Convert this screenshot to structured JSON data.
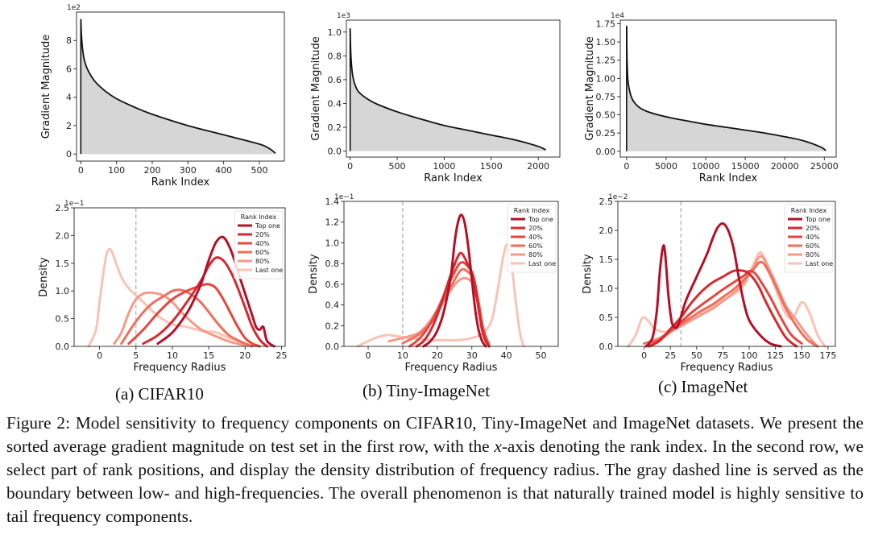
{
  "figure": {
    "subcaptions": [
      "(a) CIFAR10",
      "(b) Tiny-ImageNet",
      "(c) ImageNet"
    ],
    "caption": {
      "label": "Figure 2:",
      "text_before_math": "Model sensitivity to frequency components on CIFAR10, Tiny-ImageNet and ImageNet datasets. We present the sorted average gradient magnitude on test set in the first row, with the ",
      "math": "x",
      "text_after_math": "-axis denoting the rank index. In the second row, we select part of rank positions, and display the density distribution of frequency radius. The gray dashed line is served as the boundary between low- and high-frequencies. The overall phenomenon is that naturally trained model is highly sensitive to tail frequency components."
    }
  },
  "colors": {
    "fill_gray": "#d6d6d6",
    "curve_black": "#111111",
    "boundary_gray": "#9a9a9a",
    "series": [
      "#b5102a",
      "#d42a2f",
      "#e5473f",
      "#ef6f5c",
      "#f49a86",
      "#f7c4b5"
    ]
  },
  "chart_data": [
    {
      "id": "mag_cifar",
      "type": "area",
      "xlabel": "Rank Index",
      "ylabel": "Gradient Magnitude",
      "y_scale_label": "1e2",
      "xlim": [
        -12,
        570
      ],
      "ylim": [
        -0.5,
        10
      ],
      "xticks": [
        0,
        100,
        200,
        300,
        400,
        500
      ],
      "yticks": [
        0,
        2,
        4,
        6,
        8
      ],
      "x": [
        0,
        2,
        5,
        10,
        20,
        40,
        70,
        100,
        150,
        200,
        300,
        400,
        500,
        530,
        545
      ],
      "y": [
        9.5,
        8.3,
        7.4,
        6.6,
        5.9,
        5.1,
        4.4,
        3.9,
        3.3,
        2.8,
        2.0,
        1.35,
        0.7,
        0.35,
        0.05
      ]
    },
    {
      "id": "mag_tiny",
      "type": "area",
      "xlabel": "Rank Index",
      "ylabel": "Gradient Magnitude",
      "y_scale_label": "1e3",
      "xlim": [
        -40,
        2230
      ],
      "ylim": [
        -0.05,
        1.1
      ],
      "xticks": [
        0,
        500,
        1000,
        1500,
        2000
      ],
      "yticks": [
        0.0,
        0.2,
        0.4,
        0.6,
        0.8,
        1.0
      ],
      "x": [
        0,
        5,
        15,
        30,
        60,
        100,
        200,
        300,
        500,
        750,
        1000,
        1250,
        1500,
        1750,
        2000,
        2080
      ],
      "y": [
        1.03,
        0.85,
        0.72,
        0.62,
        0.54,
        0.49,
        0.43,
        0.39,
        0.33,
        0.27,
        0.215,
        0.175,
        0.135,
        0.095,
        0.04,
        0.01
      ]
    },
    {
      "id": "mag_imagenet",
      "type": "area",
      "xlabel": "Rank Index",
      "ylabel": "Gradient Magnitude",
      "y_scale_label": "1e4",
      "xlim": [
        -800,
        26500
      ],
      "ylim": [
        -0.08,
        1.8
      ],
      "xticks": [
        0,
        5000,
        10000,
        15000,
        20000,
        25000
      ],
      "yticks": [
        0.0,
        0.25,
        0.5,
        0.75,
        1.0,
        1.25,
        1.5,
        1.75
      ],
      "x": [
        0,
        50,
        150,
        400,
        800,
        1500,
        2500,
        4000,
        6000,
        8000,
        10000,
        12500,
        15000,
        17500,
        20000,
        22500,
        24500,
        25200
      ],
      "y": [
        1.72,
        1.3,
        1.0,
        0.82,
        0.7,
        0.61,
        0.55,
        0.5,
        0.45,
        0.41,
        0.37,
        0.33,
        0.29,
        0.25,
        0.2,
        0.14,
        0.06,
        0.01
      ]
    },
    {
      "id": "dens_cifar",
      "type": "line",
      "xlabel": "Frequency Radius",
      "ylabel": "Density",
      "y_scale_label": "1e−1",
      "xlim": [
        -3.5,
        25.5
      ],
      "ylim": [
        0,
        2.5
      ],
      "xticks": [
        0,
        5,
        10,
        15,
        20,
        25
      ],
      "yticks": [
        0.0,
        0.5,
        1.0,
        1.5,
        2.0,
        2.5
      ],
      "boundary_x": 5,
      "legend_title": "Rank Index",
      "series": [
        {
          "name": "Top one",
          "x": [
            8,
            10,
            12,
            13,
            14,
            15,
            16,
            17,
            18,
            19,
            20,
            21,
            21.5,
            22,
            22.5,
            23,
            24
          ],
          "y": [
            0.05,
            0.25,
            0.6,
            0.85,
            1.15,
            1.55,
            1.88,
            1.97,
            1.75,
            1.35,
            0.95,
            0.55,
            0.35,
            0.3,
            0.35,
            0.1,
            0
          ]
        },
        {
          "name": "20%",
          "x": [
            6,
            8,
            10,
            12,
            14,
            15,
            16,
            17,
            18,
            19,
            20,
            21,
            22,
            23
          ],
          "y": [
            0.05,
            0.2,
            0.45,
            0.8,
            1.2,
            1.45,
            1.6,
            1.55,
            1.35,
            1.05,
            0.7,
            0.35,
            0.12,
            0
          ]
        },
        {
          "name": "40%",
          "x": [
            4,
            6,
            8,
            10,
            12,
            14,
            15,
            16,
            17,
            18,
            19,
            20,
            21,
            22
          ],
          "y": [
            0.05,
            0.3,
            0.6,
            0.85,
            1.0,
            1.1,
            1.12,
            1.05,
            0.85,
            0.6,
            0.35,
            0.15,
            0.05,
            0
          ]
        },
        {
          "name": "60%",
          "x": [
            3,
            5,
            7,
            9,
            10,
            11,
            12,
            13,
            14,
            15,
            16,
            17,
            18,
            20,
            21
          ],
          "y": [
            0.05,
            0.45,
            0.75,
            0.92,
            1.0,
            1.02,
            0.98,
            0.9,
            0.78,
            0.62,
            0.45,
            0.3,
            0.18,
            0.05,
            0
          ]
        },
        {
          "name": "80%",
          "x": [
            2,
            3,
            4,
            5,
            6,
            7,
            8,
            9,
            10,
            11,
            12,
            13,
            14,
            16,
            18,
            20
          ],
          "y": [
            0.05,
            0.25,
            0.6,
            0.85,
            0.95,
            0.97,
            0.95,
            0.9,
            0.8,
            0.65,
            0.52,
            0.4,
            0.3,
            0.18,
            0.08,
            0.02
          ]
        },
        {
          "name": "Last one",
          "x": [
            -1.5,
            -0.5,
            0,
            0.5,
            1,
            1.5,
            2,
            3,
            4,
            5,
            6,
            8,
            10,
            12,
            14,
            16,
            18,
            20,
            22
          ],
          "y": [
            0,
            0.3,
            0.8,
            1.3,
            1.68,
            1.75,
            1.6,
            1.25,
            1.05,
            0.92,
            0.8,
            0.55,
            0.4,
            0.35,
            0.28,
            0.25,
            0.14,
            0.05,
            0
          ]
        }
      ]
    },
    {
      "id": "dens_tiny",
      "type": "line",
      "xlabel": "Frequency Radius",
      "ylabel": "Density",
      "y_scale_label": "1e−1",
      "xlim": [
        -7,
        55
      ],
      "ylim": [
        0,
        1.4
      ],
      "xticks": [
        0,
        10,
        20,
        30,
        40,
        50
      ],
      "yticks": [
        0.0,
        0.2,
        0.4,
        0.6,
        0.8,
        1.0,
        1.2,
        1.4
      ],
      "boundary_x": 10,
      "legend_title": "Rank Index",
      "series": [
        {
          "name": "Top one",
          "x": [
            16,
            18,
            20,
            22,
            24,
            25,
            26,
            27,
            28,
            29,
            30,
            31,
            32,
            33,
            34
          ],
          "y": [
            0,
            0.05,
            0.15,
            0.35,
            0.7,
            1.0,
            1.2,
            1.27,
            1.18,
            0.95,
            0.65,
            0.35,
            0.15,
            0.05,
            0
          ]
        },
        {
          "name": "20%",
          "x": [
            14,
            16,
            18,
            20,
            22,
            24,
            26,
            27,
            28,
            29,
            30,
            31,
            32,
            33,
            34,
            35
          ],
          "y": [
            0,
            0.05,
            0.15,
            0.3,
            0.5,
            0.7,
            0.87,
            0.9,
            0.85,
            0.78,
            0.7,
            0.55,
            0.35,
            0.15,
            0.05,
            0
          ]
        },
        {
          "name": "40%",
          "x": [
            12,
            14,
            16,
            18,
            20,
            22,
            24,
            26,
            27,
            28,
            30,
            31,
            32,
            33,
            34,
            35
          ],
          "y": [
            0,
            0.05,
            0.12,
            0.22,
            0.35,
            0.5,
            0.65,
            0.78,
            0.81,
            0.8,
            0.72,
            0.6,
            0.4,
            0.2,
            0.08,
            0
          ]
        },
        {
          "name": "60%",
          "x": [
            10,
            14,
            16,
            18,
            20,
            22,
            24,
            26,
            27,
            28,
            30,
            31,
            32,
            33,
            34,
            35
          ],
          "y": [
            0.03,
            0.1,
            0.15,
            0.22,
            0.32,
            0.45,
            0.58,
            0.7,
            0.74,
            0.74,
            0.68,
            0.58,
            0.42,
            0.22,
            0.1,
            0.02
          ]
        },
        {
          "name": "80%",
          "x": [
            6,
            10,
            14,
            16,
            18,
            20,
            22,
            24,
            26,
            28,
            30,
            31,
            32,
            33,
            34,
            35
          ],
          "y": [
            0.05,
            0.08,
            0.12,
            0.17,
            0.25,
            0.35,
            0.45,
            0.55,
            0.63,
            0.66,
            0.62,
            0.52,
            0.38,
            0.2,
            0.08,
            0.02
          ]
        },
        {
          "name": "Last one",
          "x": [
            -3,
            0,
            2,
            4,
            6,
            8,
            10,
            12,
            15,
            18,
            22,
            26,
            30,
            33,
            35,
            36,
            37,
            38,
            39,
            40,
            41,
            42,
            43,
            44,
            45
          ],
          "y": [
            0,
            0.05,
            0.08,
            0.1,
            0.11,
            0.1,
            0.09,
            0.08,
            0.07,
            0.06,
            0.06,
            0.06,
            0.08,
            0.12,
            0.2,
            0.28,
            0.45,
            0.65,
            0.85,
            0.98,
            0.92,
            0.65,
            0.35,
            0.12,
            0
          ]
        }
      ]
    },
    {
      "id": "dens_imagenet",
      "type": "line",
      "xlabel": "Frequency Radius",
      "ylabel": "Density",
      "y_scale_label": "1e−2",
      "xlim": [
        -25,
        182
      ],
      "ylim": [
        0,
        2.5
      ],
      "xticks": [
        0,
        25,
        50,
        75,
        100,
        125,
        150,
        175
      ],
      "yticks": [
        0.0,
        0.5,
        1.0,
        1.5,
        2.0,
        2.5
      ],
      "boundary_x": 35,
      "legend_title": "Rank Index",
      "series": [
        {
          "name": "Top one",
          "x": [
            2,
            8,
            12,
            15,
            18,
            20,
            23,
            26,
            28,
            30,
            32,
            34,
            40,
            50,
            60,
            65,
            70,
            75,
            80,
            85,
            90,
            95,
            100,
            110,
            120,
            130
          ],
          "y": [
            0,
            0.15,
            0.6,
            1.3,
            1.72,
            1.6,
            0.9,
            0.45,
            0.35,
            0.32,
            0.35,
            0.45,
            0.8,
            1.2,
            1.6,
            1.85,
            2.05,
            2.12,
            2.0,
            1.7,
            1.2,
            0.75,
            0.45,
            0.2,
            0.05,
            0
          ]
        },
        {
          "name": "20%",
          "x": [
            5,
            15,
            25,
            35,
            45,
            55,
            65,
            75,
            85,
            95,
            100,
            105,
            110,
            115,
            125,
            135,
            145
          ],
          "y": [
            0,
            0.1,
            0.3,
            0.5,
            0.75,
            0.95,
            1.1,
            1.2,
            1.3,
            1.3,
            1.25,
            1.15,
            1.0,
            0.8,
            0.45,
            0.15,
            0
          ]
        },
        {
          "name": "40%",
          "x": [
            5,
            15,
            25,
            35,
            45,
            55,
            65,
            75,
            85,
            95,
            100,
            105,
            110,
            120,
            130,
            140,
            150
          ],
          "y": [
            0,
            0.12,
            0.28,
            0.42,
            0.58,
            0.72,
            0.85,
            0.98,
            1.1,
            1.22,
            1.3,
            1.27,
            1.15,
            0.85,
            0.5,
            0.2,
            0.05
          ]
        },
        {
          "name": "60%",
          "x": [
            0,
            15,
            25,
            35,
            45,
            55,
            65,
            75,
            85,
            95,
            105,
            110,
            115,
            125,
            135,
            145,
            155,
            165
          ],
          "y": [
            0.05,
            0.12,
            0.25,
            0.38,
            0.5,
            0.62,
            0.72,
            0.85,
            0.98,
            1.15,
            1.35,
            1.45,
            1.4,
            1.05,
            0.65,
            0.35,
            0.12,
            0
          ]
        },
        {
          "name": "80%",
          "x": [
            0,
            15,
            25,
            35,
            45,
            55,
            65,
            75,
            85,
            95,
            105,
            110,
            115,
            125,
            135,
            145,
            155,
            165
          ],
          "y": [
            0.05,
            0.15,
            0.25,
            0.35,
            0.45,
            0.55,
            0.65,
            0.78,
            0.92,
            1.1,
            1.4,
            1.55,
            1.48,
            1.1,
            0.7,
            0.45,
            0.2,
            0
          ]
        },
        {
          "name": "Last one",
          "x": [
            -15,
            -8,
            -3,
            0,
            5,
            10,
            20,
            30,
            40,
            55,
            70,
            85,
            95,
            105,
            110,
            115,
            125,
            135,
            142,
            148,
            152,
            158,
            165,
            172
          ],
          "y": [
            0,
            0.2,
            0.45,
            0.5,
            0.42,
            0.3,
            0.25,
            0.32,
            0.45,
            0.6,
            0.75,
            0.9,
            1.05,
            1.45,
            1.62,
            1.5,
            1.0,
            0.55,
            0.5,
            0.72,
            0.75,
            0.55,
            0.2,
            0
          ]
        }
      ]
    }
  ]
}
